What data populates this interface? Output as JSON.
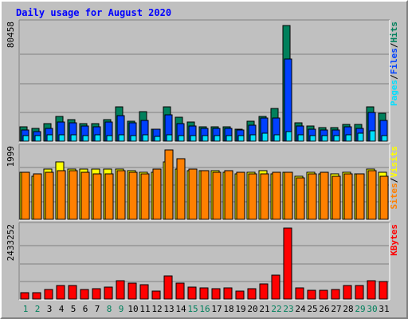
{
  "title": "Daily usage for August 2020",
  "colors": {
    "hits": "#00805c",
    "files": "#0040ff",
    "pages": "#00e0ff",
    "visits": "#ffff00",
    "sites": "#ff8000",
    "kbytes": "#ff0000",
    "weekend_day": "#00805c",
    "weekday": "#000000",
    "frame": "#c0c0c0"
  },
  "chart_data": [
    {
      "type": "bar",
      "panel": "pages-files-hits",
      "ylabel_parts": [
        "Pages",
        "/",
        "Files",
        "/",
        "Hits"
      ],
      "ymax_label": "80458",
      "ylim": [
        0,
        80458
      ],
      "categories": [
        "1",
        "2",
        "3",
        "4",
        "5",
        "6",
        "7",
        "8",
        "9",
        "10",
        "11",
        "12",
        "13",
        "14",
        "15",
        "16",
        "17",
        "18",
        "19",
        "20",
        "21",
        "22",
        "23",
        "24",
        "25",
        "26",
        "27",
        "28",
        "29",
        "30",
        "31"
      ],
      "series": [
        {
          "name": "Hits",
          "values": [
            10100,
            9100,
            12100,
            17100,
            15100,
            12100,
            12100,
            15100,
            23600,
            13600,
            20600,
            8600,
            23600,
            16600,
            13100,
            10100,
            10100,
            10100,
            8600,
            13600,
            17100,
            22600,
            80458,
            12600,
            10600,
            9600,
            9600,
            11600,
            11600,
            24000,
            19600
          ]
        },
        {
          "name": "Files",
          "values": [
            7500,
            6500,
            9000,
            13500,
            12500,
            10500,
            10000,
            13500,
            18000,
            13000,
            14500,
            8500,
            18500,
            12000,
            10500,
            9000,
            9000,
            9000,
            8000,
            11000,
            16000,
            16000,
            57000,
            10500,
            8500,
            8000,
            8000,
            10000,
            9000,
            20000,
            14500
          ]
        },
        {
          "name": "Pages",
          "values": [
            3700,
            3700,
            4200,
            4700,
            4200,
            3700,
            4700,
            3700,
            4200,
            3700,
            4700,
            3200,
            4700,
            3700,
            3700,
            3700,
            3700,
            3700,
            3700,
            4200,
            5700,
            4700,
            6700,
            4700,
            3700,
            3700,
            3700,
            4200,
            5700,
            7200,
            3700
          ]
        }
      ]
    },
    {
      "type": "bar",
      "panel": "sites-visits",
      "ylabel_parts": [
        "Sites",
        "/",
        "Visits"
      ],
      "ymax_label": "1999",
      "ylim": [
        0,
        1999
      ],
      "categories": [
        "1",
        "2",
        "3",
        "4",
        "5",
        "6",
        "7",
        "8",
        "9",
        "10",
        "11",
        "12",
        "13",
        "14",
        "15",
        "16",
        "17",
        "18",
        "19",
        "20",
        "21",
        "22",
        "23",
        "24",
        "25",
        "26",
        "27",
        "28",
        "29",
        "30",
        "31"
      ],
      "series": [
        {
          "name": "Visits",
          "values": [
            1350,
            1250,
            1450,
            1650,
            1450,
            1450,
            1450,
            1450,
            1450,
            1400,
            1350,
            1350,
            1650,
            1450,
            1400,
            1400,
            1400,
            1350,
            1300,
            1350,
            1400,
            1300,
            1350,
            1250,
            1350,
            1300,
            1300,
            1350,
            1300,
            1450,
            1350
          ]
        },
        {
          "name": "Sites",
          "values": [
            1350,
            1300,
            1350,
            1400,
            1400,
            1350,
            1300,
            1300,
            1400,
            1350,
            1300,
            1450,
            1999,
            1750,
            1450,
            1400,
            1350,
            1400,
            1350,
            1300,
            1300,
            1350,
            1350,
            1200,
            1300,
            1350,
            1250,
            1300,
            1300,
            1400,
            1250
          ]
        }
      ]
    },
    {
      "type": "bar",
      "panel": "kbytes",
      "ylabel_parts": [
        "KBytes"
      ],
      "ymax_label": "2433252",
      "ylim": [
        0,
        2433252
      ],
      "categories": [
        "1",
        "2",
        "3",
        "4",
        "5",
        "6",
        "7",
        "8",
        "9",
        "10",
        "11",
        "12",
        "13",
        "14",
        "15",
        "16",
        "17",
        "18",
        "19",
        "20",
        "21",
        "22",
        "23",
        "24",
        "25",
        "26",
        "27",
        "28",
        "29",
        "30",
        "31"
      ],
      "series": [
        {
          "name": "KBytes",
          "values": [
            230000,
            230000,
            320000,
            460000,
            460000,
            320000,
            360000,
            410000,
            640000,
            550000,
            500000,
            280000,
            780000,
            550000,
            410000,
            370000,
            360000,
            370000,
            280000,
            360000,
            520000,
            830000,
            2433252,
            370000,
            290000,
            290000,
            320000,
            460000,
            460000,
            620000,
            610000
          ]
        }
      ]
    }
  ],
  "day_labels": [
    "1",
    "2",
    "3",
    "4",
    "5",
    "6",
    "7",
    "8",
    "9",
    "10",
    "11",
    "12",
    "13",
    "14",
    "15",
    "16",
    "17",
    "18",
    "19",
    "20",
    "21",
    "22",
    "23",
    "24",
    "25",
    "26",
    "27",
    "28",
    "29",
    "30",
    "31"
  ],
  "weekend_days": [
    "1",
    "2",
    "8",
    "9",
    "15",
    "16",
    "22",
    "23",
    "29",
    "30"
  ]
}
